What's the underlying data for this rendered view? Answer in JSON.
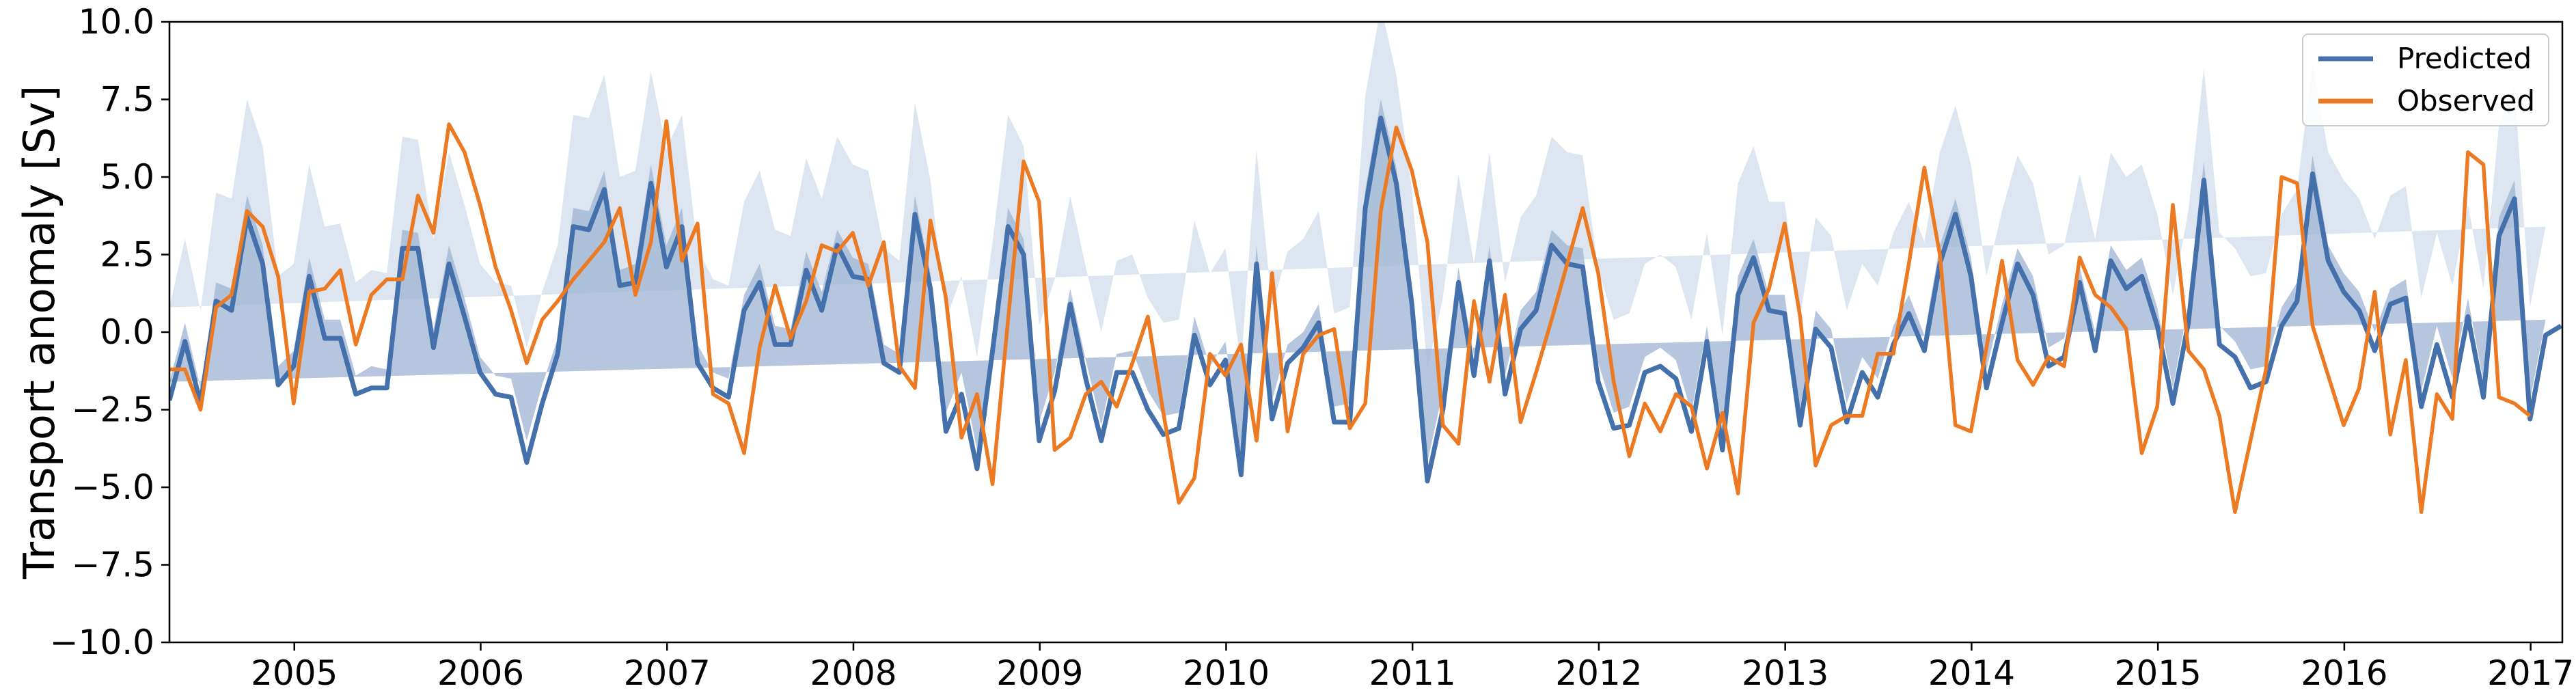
{
  "chart_data": {
    "type": "line",
    "title": "",
    "xlabel": "",
    "ylabel": "Transport anomaly [Sv]",
    "xlim": [
      2004.33,
      2017.17
    ],
    "ylim": [
      -10,
      10
    ],
    "x_ticks": [
      "2005",
      "2006",
      "2007",
      "2008",
      "2009",
      "2010",
      "2011",
      "2012",
      "2013",
      "2014",
      "2015",
      "2016",
      "2017"
    ],
    "y_ticks": [
      "−10.0",
      "−7.5",
      "−5.0",
      "−2.5",
      "0.0",
      "2.5",
      "5.0",
      "7.5",
      "10.0"
    ],
    "grid": false,
    "legend_position": "top-right",
    "colors": {
      "predicted": "#4471ab",
      "observed": "#ec7a23",
      "band_outer": "#dae4ef",
      "band_inner": "#a2b8d6"
    },
    "start_year": 2004.33,
    "band_outer_halfwidth": [
      3.0,
      3.3,
      3.0,
      3.5,
      3.6,
      3.8,
      3.8,
      3.5,
      3.3,
      3.6,
      3.6,
      3.7,
      3.6,
      3.8,
      3.7,
      3.6,
      3.5,
      3.5,
      3.6,
      3.6,
      3.5,
      3.6,
      3.6,
      3.7,
      3.6,
      3.5,
      3.6,
      3.6,
      3.7,
      3.5,
      3.6,
      3.6,
      3.8,
      3.6,
      3.7,
      3.5,
      3.6,
      3.5,
      3.6,
      3.7,
      3.5,
      3.6,
      3.6,
      3.5,
      3.6,
      3.5,
      3.7,
      3.6,
      3.6,
      3.5,
      3.6,
      3.8,
      3.6,
      3.5,
      3.6,
      3.5,
      3.7,
      3.6,
      3.5,
      3.6,
      3.5,
      3.6,
      3.8,
      3.6,
      3.6,
      3.5,
      3.7,
      3.6,
      3.6,
      3.5,
      3.7,
      3.6,
      3.6,
      3.5,
      3.6,
      3.5,
      3.7,
      3.6,
      3.6,
      3.5,
      3.7,
      3.6,
      3.6,
      3.5,
      3.6,
      3.5,
      3.6,
      3.6,
      3.7,
      3.5,
      3.6,
      3.6,
      3.6,
      3.5,
      3.6,
      3.5,
      3.6,
      3.6,
      3.6,
      3.5,
      3.7,
      3.6,
      3.6,
      3.5,
      3.6,
      3.5,
      3.6,
      3.6,
      3.6,
      3.5,
      3.6,
      3.6,
      3.6,
      3.5,
      3.6,
      3.5,
      3.6,
      3.6,
      3.6,
      3.5,
      3.6,
      3.6,
      3.6,
      3.5,
      3.6,
      3.5,
      3.6,
      3.6,
      3.6,
      3.5,
      3.6,
      3.6,
      3.6,
      3.5,
      3.6,
      3.5,
      3.6,
      3.6,
      3.6,
      3.5,
      3.6,
      3.6,
      3.6,
      3.5,
      3.6,
      3.5,
      3.6,
      3.6,
      3.6,
      3.5,
      3.6,
      3.6,
      3.6,
      3.5
    ],
    "band_inner_halfwidth": [
      0.6,
      0.6,
      0.5,
      0.6,
      0.7,
      0.7,
      0.6,
      0.6,
      0.5,
      0.6,
      0.6,
      0.6,
      0.6,
      0.7,
      0.6,
      0.6,
      0.5,
      0.6,
      0.6,
      0.6,
      0.5,
      0.6,
      0.6,
      0.7,
      0.6,
      0.5,
      0.6,
      0.6,
      0.6,
      0.5,
      0.6,
      0.6,
      0.7,
      0.6,
      0.6,
      0.5,
      0.6,
      0.5,
      0.6,
      0.6,
      0.5,
      0.6,
      0.6,
      0.5,
      0.6,
      0.5,
      0.6,
      0.6,
      0.6,
      0.5,
      0.6,
      0.7,
      0.6,
      0.5,
      0.6,
      0.5,
      0.6,
      0.6,
      0.5,
      0.6,
      0.5,
      0.6,
      0.7,
      0.6,
      0.6,
      0.5,
      0.6,
      0.6,
      0.6,
      0.5,
      0.6,
      0.6,
      0.6,
      0.5,
      0.6,
      0.5,
      0.6,
      0.6,
      0.6,
      0.5,
      0.6,
      0.6,
      0.6,
      0.5,
      0.6,
      0.5,
      0.6,
      0.6,
      0.6,
      0.5,
      0.6,
      0.6,
      0.6,
      0.5,
      0.6,
      0.5,
      0.6,
      0.6,
      0.6,
      0.5,
      0.6,
      0.6,
      0.6,
      0.5,
      0.6,
      0.5,
      0.6,
      0.6,
      0.6,
      0.5,
      0.6,
      0.6,
      0.6,
      0.5,
      0.6,
      0.5,
      0.6,
      0.6,
      0.6,
      0.5,
      0.6,
      0.6,
      0.6,
      0.5,
      0.6,
      0.5,
      0.6,
      0.6,
      0.6,
      0.5,
      0.6,
      0.6,
      0.6,
      0.5,
      0.6,
      0.5,
      0.6,
      0.6,
      0.6,
      0.5,
      0.6,
      0.6,
      0.6,
      0.5,
      0.6,
      0.5,
      0.6,
      0.6,
      0.6,
      0.5,
      0.6,
      0.6,
      0.6,
      0.5
    ],
    "series": [
      {
        "name": "Predicted",
        "values": [
          -2.2,
          -0.3,
          -2.3,
          1.0,
          0.7,
          3.7,
          2.2,
          -1.7,
          -1.1,
          1.8,
          -0.2,
          -0.2,
          -2.0,
          -1.8,
          -1.8,
          2.7,
          2.7,
          -0.5,
          2.2,
          0.5,
          -1.3,
          -2.0,
          -2.1,
          -4.2,
          -2.3,
          -0.7,
          3.4,
          3.3,
          4.6,
          1.5,
          1.6,
          4.8,
          2.1,
          3.4,
          -1.0,
          -1.8,
          -2.1,
          0.7,
          1.6,
          -0.4,
          -0.4,
          2.0,
          0.7,
          2.8,
          1.8,
          1.7,
          -1.0,
          -1.3,
          3.8,
          1.4,
          -3.2,
          -2.0,
          -4.4,
          -0.6,
          3.4,
          2.5,
          -3.5,
          -1.9,
          0.9,
          -1.5,
          -3.5,
          -1.3,
          -1.3,
          -2.5,
          -3.3,
          -3.1,
          -0.1,
          -1.7,
          -0.9,
          -4.6,
          2.2,
          -2.8,
          -1.0,
          -0.5,
          0.3,
          -2.9,
          -2.9,
          4.0,
          6.9,
          4.8,
          0.9,
          -4.8,
          -2.5,
          1.6,
          -1.4,
          2.3,
          -2.0,
          0.1,
          0.7,
          2.8,
          2.2,
          2.1,
          -1.6,
          -3.1,
          -3.0,
          -1.3,
          -1.1,
          -1.5,
          -3.2,
          -0.3,
          -3.8,
          1.2,
          2.4,
          0.7,
          0.6,
          -3.0,
          0.1,
          -0.5,
          -2.9,
          -1.3,
          -2.1,
          -0.4,
          0.6,
          -0.6,
          2.2,
          3.8,
          1.8,
          -1.8,
          0.3,
          2.2,
          1.2,
          -1.1,
          -0.8,
          1.6,
          -0.6,
          2.3,
          1.4,
          1.8,
          0.2,
          -2.3,
          0.3,
          4.9,
          -0.4,
          -0.8,
          -1.8,
          -1.6,
          0.2,
          1.0,
          5.1,
          2.3,
          1.3,
          0.7,
          -0.6,
          0.9,
          1.1,
          -2.4,
          -0.4,
          -2.1,
          0.5,
          -2.1,
          3.1,
          4.3,
          -2.8,
          -0.1,
          0.2
        ],
        "color": "#4471ab"
      },
      {
        "name": "Observed",
        "values": [
          -1.2,
          -1.2,
          -2.5,
          0.8,
          1.2,
          3.9,
          3.4,
          1.8,
          -2.3,
          1.3,
          1.4,
          2.0,
          -0.4,
          1.2,
          1.7,
          1.7,
          4.4,
          3.2,
          6.7,
          5.8,
          4.1,
          2.1,
          0.7,
          -1.0,
          0.4,
          1.0,
          1.7,
          2.3,
          2.9,
          4.0,
          1.2,
          2.9,
          6.8,
          2.3,
          3.5,
          -2.0,
          -2.3,
          -3.9,
          -0.5,
          1.5,
          -0.2,
          1.0,
          2.8,
          2.6,
          3.2,
          1.5,
          2.9,
          -1.1,
          -1.8,
          3.6,
          1.1,
          -3.4,
          -2.0,
          -4.9,
          0.4,
          5.5,
          4.2,
          -3.8,
          -3.4,
          -2.0,
          -1.6,
          -2.4,
          -1.0,
          0.5,
          -2.6,
          -5.5,
          -4.7,
          -0.7,
          -1.4,
          -0.4,
          -3.5,
          1.9,
          -3.2,
          -0.7,
          -0.1,
          0.1,
          -3.1,
          -2.3,
          3.9,
          6.6,
          5.2,
          2.9,
          -3.0,
          -3.6,
          1.0,
          -1.6,
          1.2,
          -2.9,
          -1.3,
          0.4,
          2.2,
          4.0,
          1.9,
          -1.6,
          -4.0,
          -2.3,
          -3.2,
          -2.0,
          -2.4,
          -4.4,
          -2.6,
          -5.2,
          0.3,
          1.4,
          3.5,
          0.5,
          -4.3,
          -3.0,
          -2.7,
          -2.7,
          -0.7,
          -0.7,
          2.2,
          5.3,
          2.5,
          -3.0,
          -3.2,
          -0.5,
          2.3,
          -0.9,
          -1.7,
          -0.8,
          -1.1,
          2.4,
          1.2,
          0.8,
          0.1,
          -3.9,
          -2.4,
          4.1,
          -0.6,
          -1.2,
          -2.7,
          -5.8,
          -3.5,
          -1.2,
          5.0,
          4.8,
          0.2,
          -1.4,
          -3.0,
          -1.8,
          1.3,
          -3.3,
          -0.9,
          -5.8,
          -2.0,
          -2.8,
          5.8,
          5.4,
          -2.1,
          -2.3,
          -2.7
        ],
        "color": "#ec7a23"
      }
    ]
  }
}
